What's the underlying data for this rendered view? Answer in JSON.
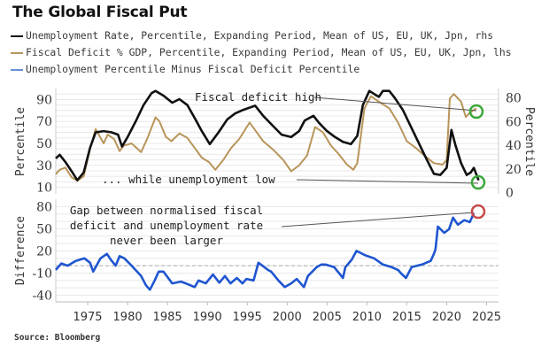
{
  "title": "The Global Fiscal Put",
  "source": "Source: Bloomberg",
  "legend": [
    {
      "label": "Unemployment Rate, Percentile, Expanding Period, Mean of US, EU, UK, Jpn, rhs",
      "color": "#111111"
    },
    {
      "label": "Fiscal Deficit % GDP, Percentile, Expanding Period, Mean of US, EU, UK, Jpn, lhs",
      "color": "#b8955a"
    },
    {
      "label": "Unemployment Percentile Minus Fiscal Deficit Percentile",
      "color": "#1f55d0"
    }
  ],
  "chart_data": [
    {
      "type": "line",
      "panel": "top",
      "ylabel_left": "Percentile",
      "ylabel_right": "Percentile",
      "ylim_left": [
        4,
        100
      ],
      "yticks_left": [
        10,
        30,
        50,
        70,
        90
      ],
      "ylim_right": [
        -1,
        88
      ],
      "yticks_right": [
        0,
        20,
        40,
        60,
        80
      ],
      "grid": true,
      "series": [
        {
          "name": "Unemployment Rate, Percentile, Expanding Period, Mean of US, EU, UK, Jpn, rhs",
          "axis": "right",
          "color": "#111111",
          "x": [
            1971.0,
            1971.5,
            1972.2,
            1973.0,
            1973.7,
            1974.5,
            1975.3,
            1976.0,
            1977.0,
            1978.0,
            1978.8,
            1979.3,
            1980.0,
            1981.0,
            1982.0,
            1983.0,
            1983.5,
            1984.5,
            1985.6,
            1986.5,
            1987.5,
            1988.5,
            1989.3,
            1990.3,
            1991.4,
            1992.5,
            1993.5,
            1994.5,
            1996.0,
            1997.0,
            1998.0,
            1999.3,
            2000.5,
            2001.5,
            2002.2,
            2003.3,
            2004.0,
            2005.0,
            2006.0,
            2007.0,
            2008.0,
            2008.8,
            2009.5,
            2010.3,
            2011.0,
            2011.5,
            2012.0,
            2012.8,
            2013.5,
            2014.5,
            2015.5,
            2016.5,
            2017.5,
            2018.4,
            2019.2,
            2020.0,
            2020.6,
            2021.1,
            2021.8,
            2022.5,
            2023.0,
            2023.4,
            2024.0
          ],
          "y": [
            29,
            32,
            26,
            18,
            10.5,
            17,
            38,
            51,
            52,
            51,
            49,
            39,
            47,
            60,
            74,
            84,
            86,
            82,
            76,
            79,
            74,
            62,
            52,
            41,
            51,
            62,
            67,
            70,
            73.5,
            65,
            58,
            49,
            47,
            52,
            61,
            65,
            59,
            52,
            47,
            43,
            41,
            48,
            74,
            86,
            83,
            81,
            86,
            86,
            80,
            70,
            56,
            42,
            28,
            16,
            15,
            21,
            53,
            40,
            25,
            15,
            17,
            21,
            10.5
          ]
        },
        {
          "name": "Fiscal Deficit % GDP, Percentile, Expanding Period, Mean of US, EU, UK, Jpn, lhs",
          "axis": "left",
          "color": "#b8955a",
          "x": [
            1971.0,
            1971.5,
            1972.2,
            1973.0,
            1973.7,
            1974.5,
            1975.3,
            1976.0,
            1977.0,
            1977.5,
            1978.3,
            1979.0,
            1979.5,
            1980.5,
            1981.7,
            1982.5,
            1983.5,
            1984.0,
            1984.8,
            1985.5,
            1986.5,
            1987.5,
            1988.5,
            1989.3,
            1990.2,
            1991.0,
            1992.0,
            1993.0,
            1994.0,
            1995.3,
            1996.0,
            1997.0,
            1998.3,
            1999.5,
            2000.5,
            2001.5,
            2002.5,
            2003.5,
            2004.5,
            2005.5,
            2006.5,
            2007.5,
            2008.3,
            2008.8,
            2009.7,
            2010.5,
            2011.5,
            2012.8,
            2013.9,
            2015.0,
            2016.1,
            2017.2,
            2018.4,
            2019.5,
            2020.0,
            2020.4,
            2020.9,
            2021.8,
            2022.4,
            2022.9,
            2023.7
          ],
          "y": [
            22,
            26,
            28,
            19,
            16,
            20,
            45,
            63,
            50,
            58,
            54,
            43,
            48,
            50,
            42,
            55,
            73.7,
            70,
            56,
            52,
            59,
            55,
            45,
            37,
            33,
            26,
            35,
            46,
            54,
            69,
            62,
            52,
            44,
            35,
            24.6,
            30,
            39,
            65,
            60,
            48,
            40,
            30.7,
            26,
            32,
            82,
            93,
            88,
            82,
            69,
            52,
            46,
            39,
            32,
            30.7,
            35,
            91,
            95,
            88,
            74,
            78,
            82
          ]
        }
      ],
      "annotations": [
        {
          "text": "Fiscal deficit high",
          "target_series": "Fiscal Deficit",
          "target_year": 2023.7
        },
        {
          "text": "... while unemployment low",
          "target_series": "Unemployment",
          "target_year": 2024.0
        }
      ]
    },
    {
      "type": "line",
      "panel": "bottom",
      "ylabel": "Difference",
      "ylim": [
        -49,
        90
      ],
      "yticks": [
        -40,
        -10,
        20,
        50,
        80
      ],
      "reference_line": 0,
      "grid": true,
      "xlabel": "",
      "xticks": [
        1975,
        1980,
        1985,
        1990,
        1995,
        2000,
        2005,
        2010,
        2015,
        2020,
        2025
      ],
      "xlim": [
        1971.0,
        2026.5
      ],
      "series": [
        {
          "name": "Unemployment Percentile Minus Fiscal Deficit Percentile",
          "color": "#1f55d0",
          "x": [
            1971.0,
            1971.7,
            1972.5,
            1973.5,
            1974.6,
            1975.3,
            1975.7,
            1976.6,
            1977.4,
            1977.9,
            1978.5,
            1979.0,
            1979.6,
            1980.5,
            1981.7,
            1982.3,
            1982.8,
            1983.4,
            1983.9,
            1984.5,
            1985.6,
            1986.7,
            1987.3,
            1988.4,
            1988.9,
            1989.8,
            1990.7,
            1991.5,
            1992.2,
            1992.9,
            1993.7,
            1994.4,
            1994.9,
            1995.8,
            1996.4,
            1996.9,
            1997.6,
            1998.0,
            1998.9,
            1999.7,
            2000.5,
            2001.2,
            2002.1,
            2002.6,
            2003.7,
            2004.3,
            2004.8,
            2005.9,
            2007.0,
            2007.3,
            2008.1,
            2008.7,
            2009.8,
            2010.9,
            2012.0,
            2013.1,
            2013.9,
            2014.3,
            2014.9,
            2015.6,
            2016.9,
            2018.0,
            2018.4,
            2018.6,
            2018.9,
            2019.7,
            2020.3,
            2020.8,
            2021.4,
            2022.2,
            2022.9,
            2023.4
          ],
          "y": [
            -5.7,
            3,
            0,
            6.5,
            10,
            4,
            -8,
            10,
            16,
            8,
            0,
            13,
            10,
            0,
            -14,
            -26.5,
            -32.6,
            -20,
            -8,
            -8,
            -24,
            -21.6,
            -24,
            -29,
            -20,
            -24,
            -12,
            -23,
            -14,
            -24,
            -16.7,
            -24,
            -18,
            -20,
            4,
            0,
            -5.7,
            -8,
            -20,
            -29,
            -24,
            -18,
            -29,
            -14,
            -2,
            1.6,
            1.6,
            -2,
            -16.7,
            -2,
            8,
            20,
            14,
            10,
            1.6,
            -2,
            -5.7,
            -10.6,
            -16.7,
            -2,
            1.6,
            6.5,
            16,
            22,
            53,
            44.5,
            49.4,
            65,
            55.5,
            61.6,
            59,
            71
          ]
        }
      ],
      "annotations": [
        {
          "text": "Gap between normalised fiscal deficit and unemployment rate never been larger",
          "target_year": 2023.4
        }
      ]
    }
  ],
  "annotation_text": {
    "fiscal_high": "Fiscal deficit high",
    "unemp_low": "... while unemployment low",
    "gap_line1": "Gap between normalised fiscal",
    "gap_line2": "deficit and unemployment rate",
    "gap_line3": "never been larger"
  },
  "axis_labels": {
    "top_left": "Percentile",
    "top_right": "Percentile",
    "bottom_left": "Difference"
  },
  "highlight_colors": {
    "green": "#3aa83a",
    "red": "#c84a4a"
  }
}
